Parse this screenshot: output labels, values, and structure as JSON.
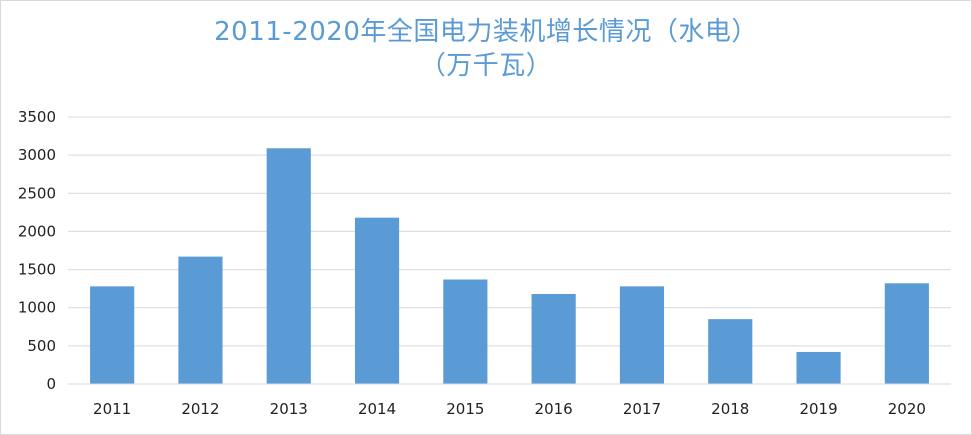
{
  "chart_data": {
    "type": "bar",
    "title_line1": "2011-2020年全国电力装机增长情况（水电）",
    "title_line2": "（万千瓦）",
    "xlabel": "",
    "ylabel": "",
    "categories": [
      "2011",
      "2012",
      "2013",
      "2014",
      "2015",
      "2016",
      "2017",
      "2018",
      "2019",
      "2020"
    ],
    "values": [
      1280,
      1670,
      3090,
      2180,
      1370,
      1180,
      1280,
      850,
      420,
      1320
    ],
    "ylim": [
      0,
      3500
    ],
    "yticks": [
      0,
      500,
      1000,
      1500,
      2000,
      2500,
      3000,
      3500
    ],
    "grid": true,
    "legend": "none",
    "bar_color": "#5b9bd5",
    "grid_color": "#d9d9d9",
    "title_color": "#5b9bd5"
  }
}
